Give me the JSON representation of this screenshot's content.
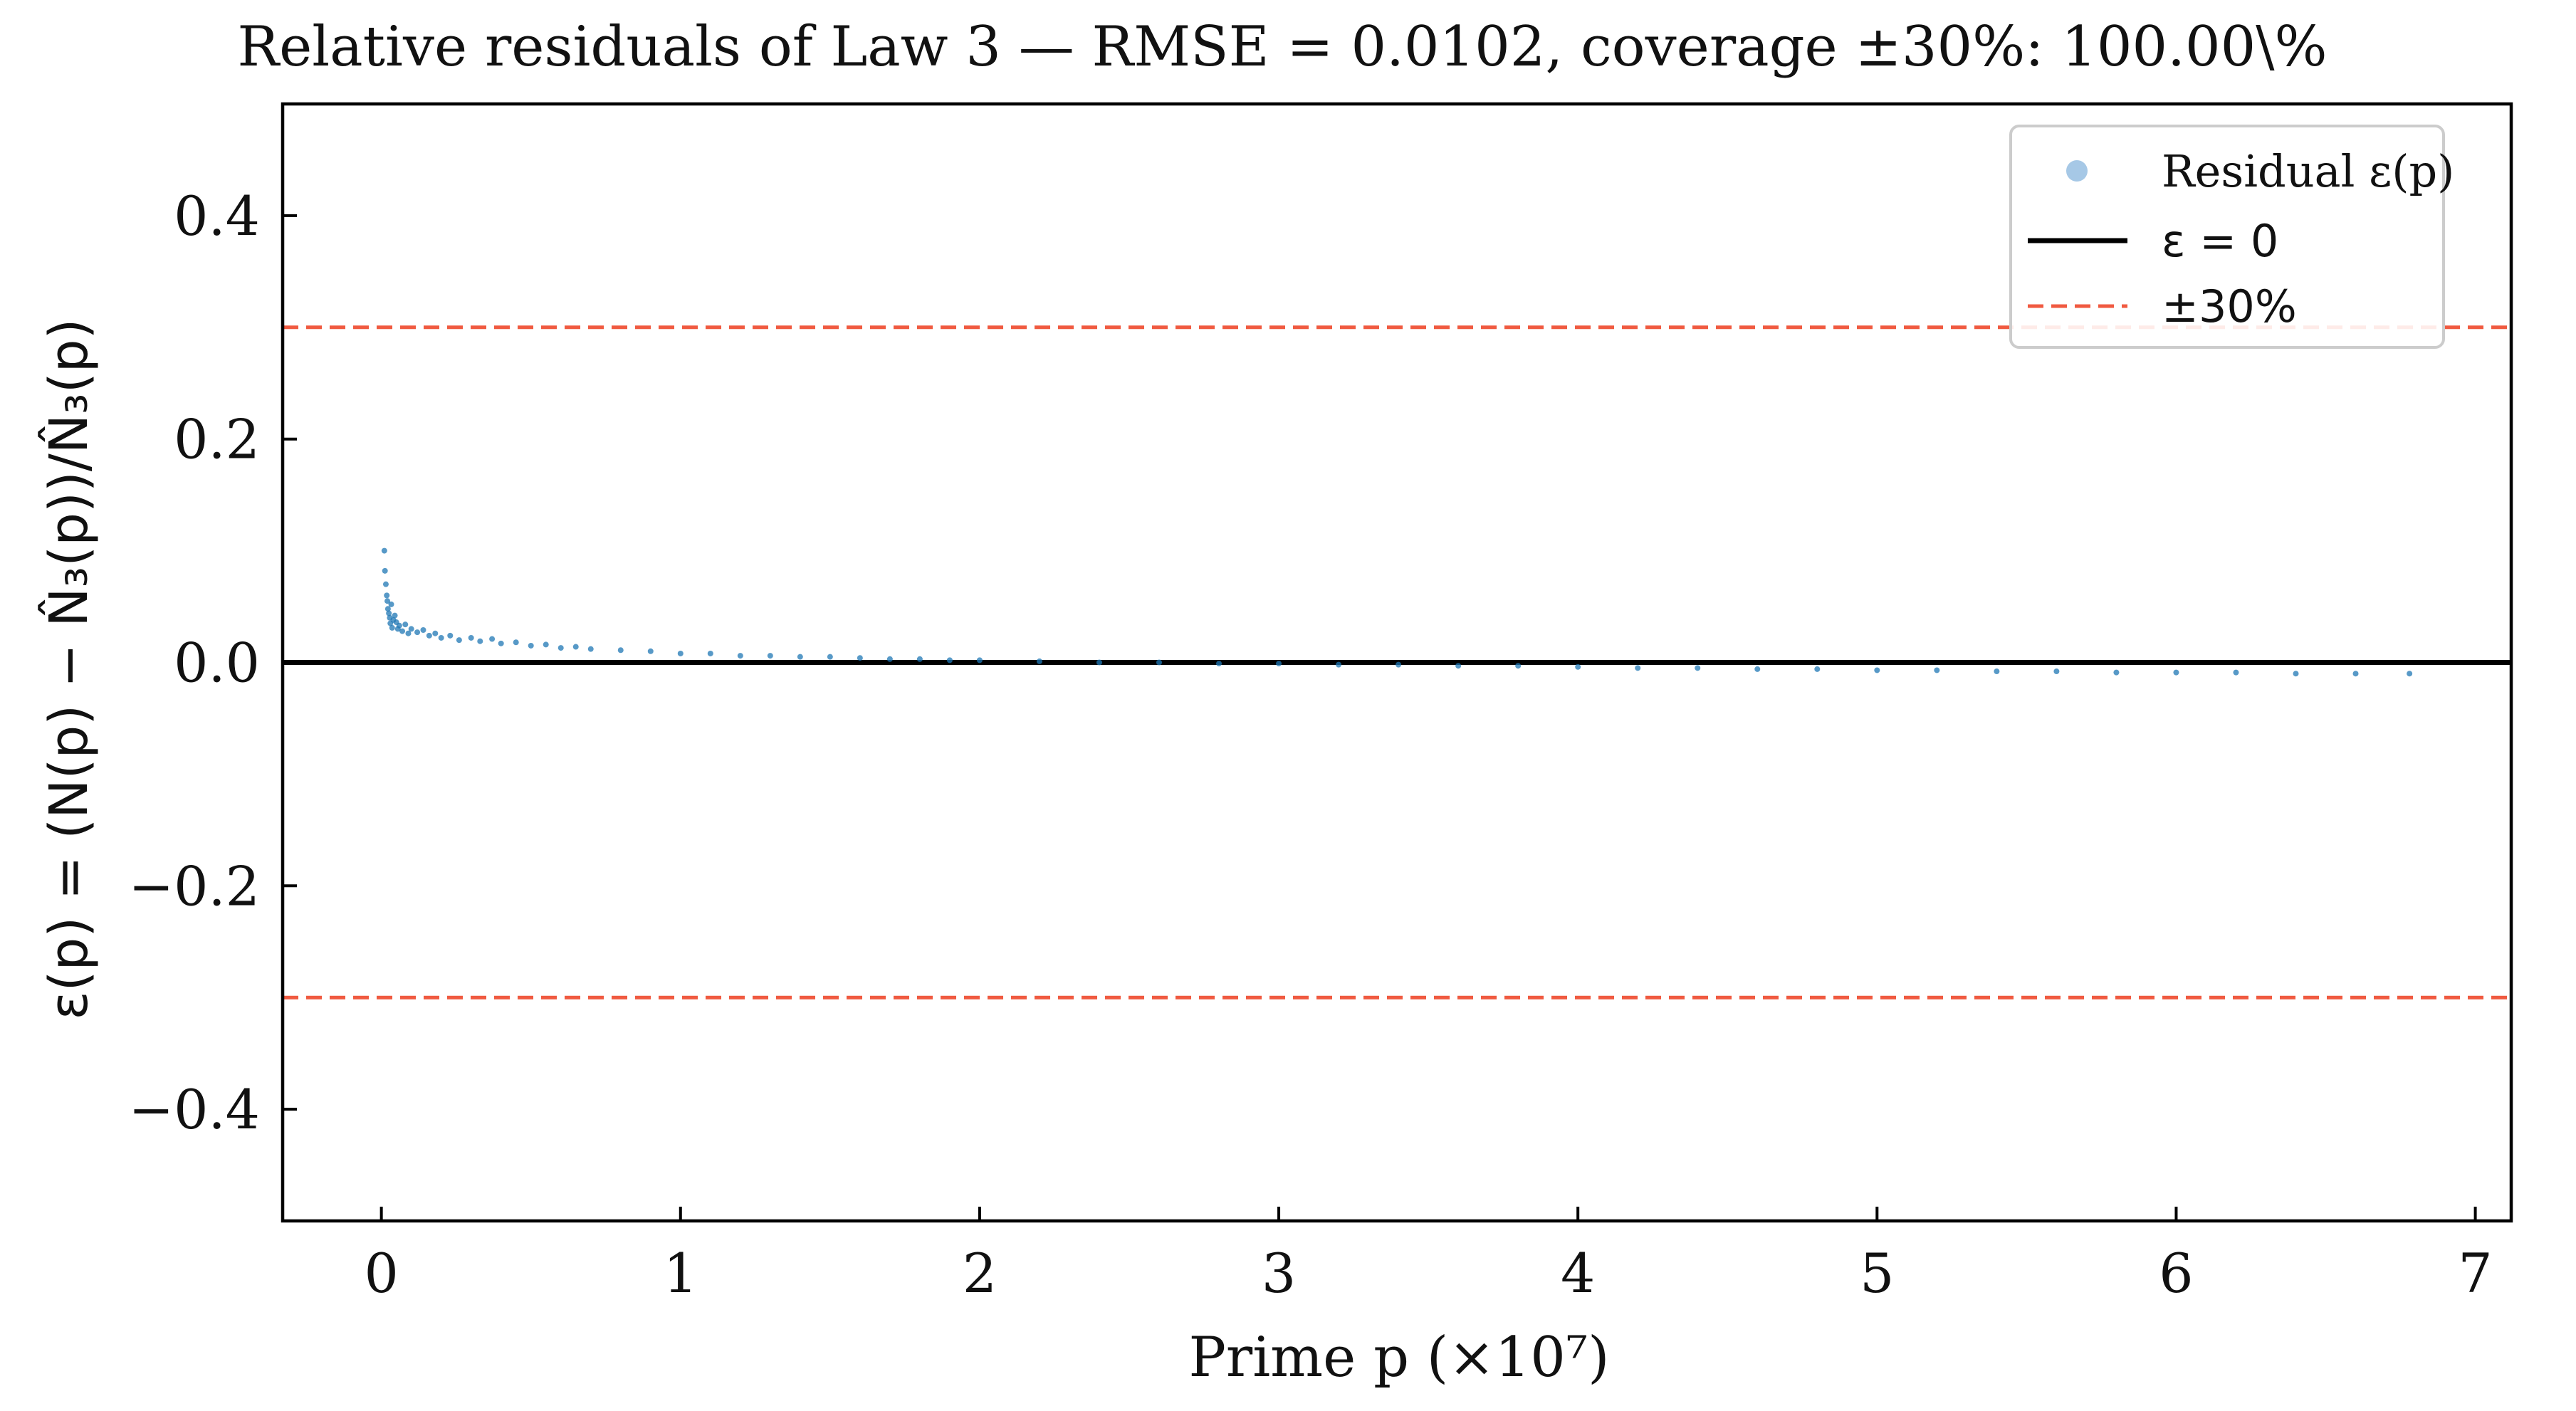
{
  "chart_data": {
    "type": "scatter",
    "title": "Relative residuals of Law 3 — RMSE = 0.0102, coverage ±30%: 100.00\\%",
    "xlabel": "Prime p (×10⁷)",
    "ylabel": "ε(p) = (N(p) − N̂₃(p))/N̂₃(p)",
    "xlim": [
      -0.33,
      7.12
    ],
    "ylim": [
      -0.5,
      0.5
    ],
    "x_ticks": [
      0,
      1,
      2,
      3,
      4,
      5,
      6,
      7
    ],
    "y_ticks": [
      -0.4,
      -0.2,
      0.0,
      0.2,
      0.4
    ],
    "x_tick_labels": [
      "0",
      "1",
      "2",
      "3",
      "4",
      "5",
      "6",
      "7"
    ],
    "y_tick_labels": [
      "−0.4",
      "−0.2",
      "0.0",
      "0.2",
      "0.4"
    ],
    "grid": false,
    "legend_position": "top-right",
    "legend": [
      {
        "label": "Residual ε(p)",
        "kind": "marker",
        "color": "#a6c8e6"
      },
      {
        "label": "ε = 0",
        "kind": "line",
        "color": "#000000"
      },
      {
        "label": "±30%",
        "kind": "dashed",
        "color": "#f05a40"
      }
    ],
    "reference_lines": [
      {
        "y": 0.0,
        "color": "#000000",
        "style": "solid"
      },
      {
        "y": 0.3,
        "color": "#f05a40",
        "style": "dashed"
      },
      {
        "y": -0.3,
        "color": "#f05a40",
        "style": "dashed"
      }
    ],
    "series": [
      {
        "color": "#1f77b4",
        "points": [
          [
            0.01,
            0.1
          ],
          [
            0.012,
            0.082
          ],
          [
            0.015,
            0.07
          ],
          [
            0.018,
            0.06
          ],
          [
            0.02,
            0.055
          ],
          [
            0.022,
            0.048
          ],
          [
            0.025,
            0.044
          ],
          [
            0.028,
            0.04
          ],
          [
            0.03,
            0.035
          ],
          [
            0.033,
            0.052
          ],
          [
            0.036,
            0.031
          ],
          [
            0.04,
            0.038
          ],
          [
            0.045,
            0.042
          ],
          [
            0.05,
            0.036
          ],
          [
            0.055,
            0.03
          ],
          [
            0.06,
            0.033
          ],
          [
            0.07,
            0.028
          ],
          [
            0.08,
            0.034
          ],
          [
            0.09,
            0.026
          ],
          [
            0.1,
            0.03
          ],
          [
            0.12,
            0.027
          ],
          [
            0.14,
            0.029
          ],
          [
            0.16,
            0.024
          ],
          [
            0.18,
            0.026
          ],
          [
            0.2,
            0.022
          ],
          [
            0.23,
            0.024
          ],
          [
            0.26,
            0.02
          ],
          [
            0.3,
            0.022
          ],
          [
            0.33,
            0.019
          ],
          [
            0.37,
            0.021
          ],
          [
            0.4,
            0.017
          ],
          [
            0.45,
            0.018
          ],
          [
            0.5,
            0.015
          ],
          [
            0.55,
            0.016
          ],
          [
            0.6,
            0.013
          ],
          [
            0.65,
            0.014
          ],
          [
            0.7,
            0.012
          ],
          [
            0.8,
            0.011
          ],
          [
            0.9,
            0.01
          ],
          [
            1.0,
            0.008
          ],
          [
            1.1,
            0.008
          ],
          [
            1.2,
            0.006
          ],
          [
            1.3,
            0.006
          ],
          [
            1.4,
            0.005
          ],
          [
            1.5,
            0.005
          ],
          [
            1.6,
            0.004
          ],
          [
            1.7,
            0.003
          ],
          [
            1.8,
            0.003
          ],
          [
            1.9,
            0.002
          ],
          [
            2.0,
            0.002
          ],
          [
            2.2,
            0.001
          ],
          [
            2.4,
            0.0
          ],
          [
            2.6,
            0.0
          ],
          [
            2.8,
            -0.001
          ],
          [
            3.0,
            -0.001
          ],
          [
            3.2,
            -0.002
          ],
          [
            3.4,
            -0.002
          ],
          [
            3.6,
            -0.003
          ],
          [
            3.8,
            -0.003
          ],
          [
            4.0,
            -0.004
          ],
          [
            4.2,
            -0.005
          ],
          [
            4.4,
            -0.005
          ],
          [
            4.6,
            -0.006
          ],
          [
            4.8,
            -0.006
          ],
          [
            5.0,
            -0.007
          ],
          [
            5.2,
            -0.007
          ],
          [
            5.4,
            -0.008
          ],
          [
            5.6,
            -0.008
          ],
          [
            5.8,
            -0.009
          ],
          [
            6.0,
            -0.009
          ],
          [
            6.2,
            -0.009
          ],
          [
            6.4,
            -0.01
          ],
          [
            6.6,
            -0.01
          ],
          [
            6.78,
            -0.01
          ]
        ]
      }
    ]
  }
}
